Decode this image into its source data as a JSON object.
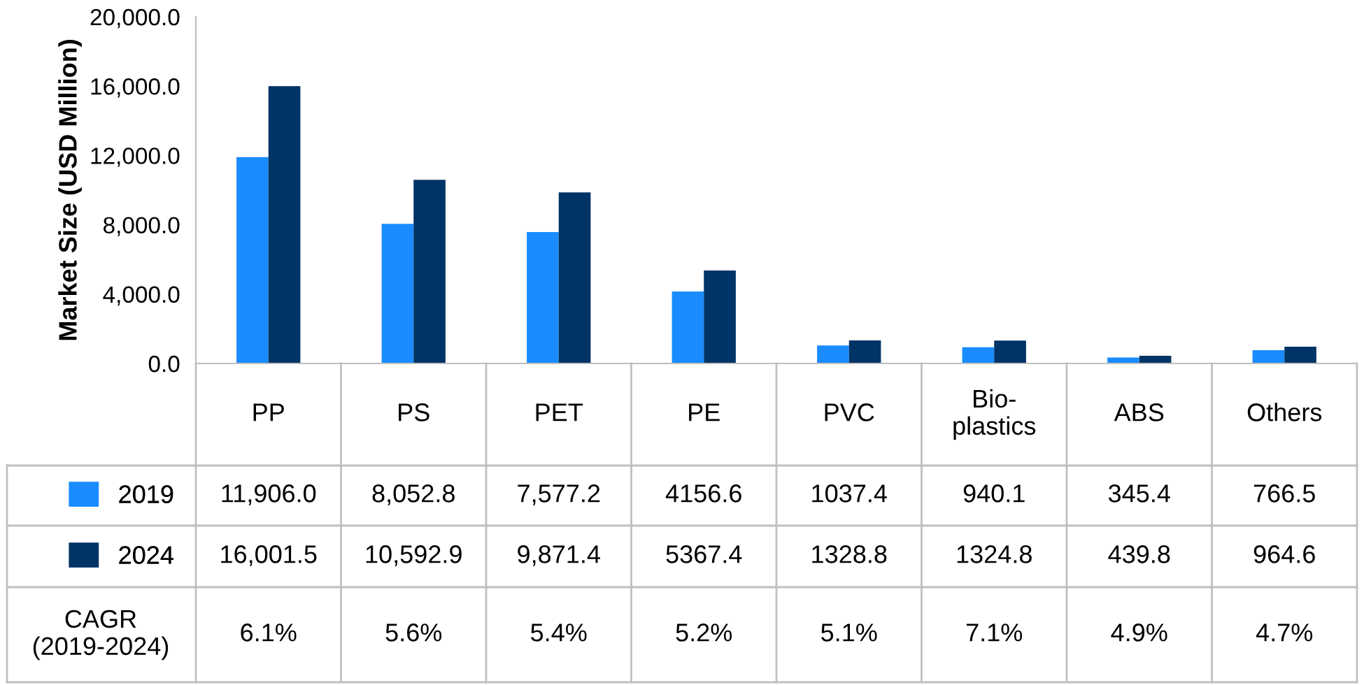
{
  "chart_data": {
    "type": "bar",
    "ylabel": "Market Size (USD Million)",
    "categories": [
      "PP",
      "PS",
      "PET",
      "PE",
      "PVC",
      "Bio-\nplastics",
      "ABS",
      "Others"
    ],
    "series": [
      {
        "name": "2019",
        "color": "#1a8cff",
        "values": [
          11906.0,
          8052.8,
          7577.2,
          4156.6,
          1037.4,
          940.1,
          345.4,
          766.5
        ],
        "value_labels": [
          "11,906.0",
          "8,052.8",
          "7,577.2",
          "4156.6",
          "1037.4",
          "940.1",
          "345.4",
          "766.5"
        ]
      },
      {
        "name": "2024",
        "color": "#003366",
        "values": [
          16001.5,
          10592.9,
          9871.4,
          5367.4,
          1328.8,
          1324.8,
          439.8,
          964.6
        ],
        "value_labels": [
          "16,001.5",
          "10,592.9",
          "9,871.4",
          "5367.4",
          "1328.8",
          "1324.8",
          "439.8",
          "964.6"
        ]
      }
    ],
    "ylim": [
      0,
      20000
    ],
    "yticks": [
      {
        "value": 0,
        "label": "0.0"
      },
      {
        "value": 4000,
        "label": "4,000.0"
      },
      {
        "value": 8000,
        "label": "8,000.0"
      },
      {
        "value": 12000,
        "label": "12,000.0"
      },
      {
        "value": 16000,
        "label": "16,000.0"
      },
      {
        "value": 20000,
        "label": "20,000.0"
      }
    ],
    "grid": false,
    "legend": "left",
    "annotations": [
      "CAGR\n(2019-2024)",
      "6.1%",
      "5.6%",
      "5.4%",
      "5.2%",
      "5.1%",
      "7.1%",
      "4.9%",
      "4.7%"
    ]
  }
}
